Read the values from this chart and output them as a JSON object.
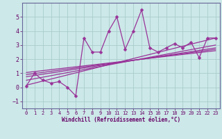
{
  "xlabel": "Windchill (Refroidissement éolien,°C)",
  "bg_color": "#cce8e8",
  "line_color": "#993399",
  "grid_color": "#aacccc",
  "text_color": "#660066",
  "spine_color": "#666699",
  "xlim": [
    -0.5,
    23.5
  ],
  "ylim": [
    -1.5,
    6.0
  ],
  "xticks": [
    0,
    1,
    2,
    3,
    4,
    5,
    6,
    7,
    8,
    9,
    10,
    11,
    12,
    13,
    14,
    15,
    16,
    17,
    18,
    19,
    20,
    21,
    22,
    23
  ],
  "yticks": [
    -1,
    0,
    1,
    2,
    3,
    4,
    5
  ],
  "scatter_x": [
    0,
    1,
    2,
    3,
    4,
    5,
    6,
    7,
    8,
    9,
    10,
    11,
    12,
    13,
    14,
    15,
    16,
    17,
    18,
    19,
    20,
    21,
    22,
    23
  ],
  "scatter_y": [
    0.1,
    1.0,
    0.5,
    0.3,
    0.4,
    0.0,
    -0.6,
    3.5,
    2.5,
    2.5,
    4.0,
    5.0,
    2.7,
    4.0,
    5.5,
    2.8,
    2.5,
    2.8,
    3.1,
    2.8,
    3.2,
    2.1,
    3.5,
    3.5
  ],
  "reg_lines": [
    {
      "x0": 0,
      "y0": 0.15,
      "x1": 23,
      "y1": 3.5
    },
    {
      "x0": 0,
      "y0": 0.5,
      "x1": 23,
      "y1": 3.0
    },
    {
      "x0": 0,
      "y0": 0.75,
      "x1": 23,
      "y1": 2.8
    },
    {
      "x0": 0,
      "y0": 0.9,
      "x1": 23,
      "y1": 2.7
    },
    {
      "x0": 0,
      "y0": 1.05,
      "x1": 23,
      "y1": 2.6
    }
  ]
}
